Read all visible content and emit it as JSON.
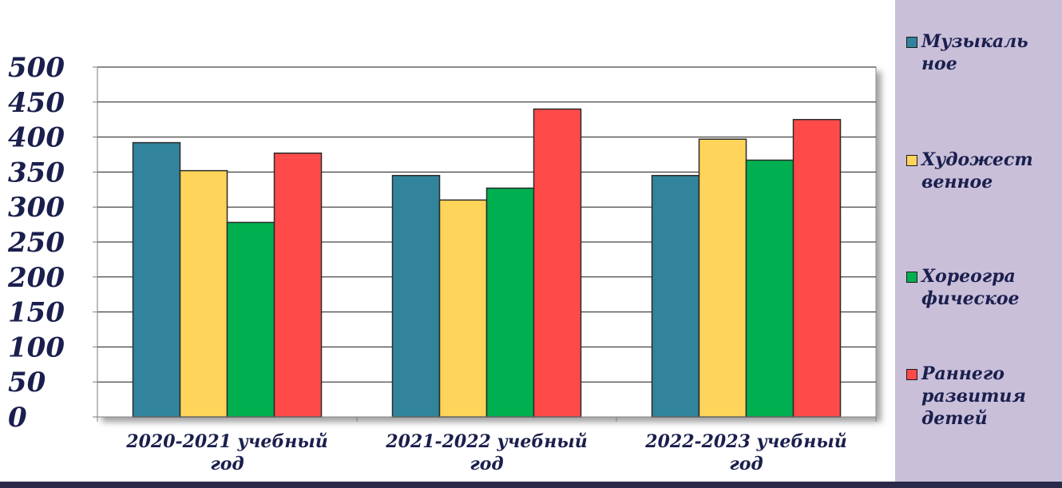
{
  "chart_data": {
    "type": "bar",
    "categories": [
      "2020-2021 учебный год",
      "2021-2022 учебный год",
      "2022-2023 учебный год"
    ],
    "category_lines": [
      [
        "2020-2021 учебный",
        "год"
      ],
      [
        "2021-2022 учебный",
        "год"
      ],
      [
        "2022-2023 учебный",
        "год"
      ]
    ],
    "series": [
      {
        "name": "Музыкальное",
        "legend_lines": [
          "Музыкаль",
          "ное"
        ],
        "color": "#31849b",
        "values": [
          392,
          345,
          345
        ]
      },
      {
        "name": "Художественное",
        "legend_lines": [
          "Художест",
          "венное"
        ],
        "color": "#ffd45a",
        "values": [
          352,
          310,
          397
        ]
      },
      {
        "name": "Хореографическое",
        "legend_lines": [
          "Хореогра",
          "фическое"
        ],
        "color": "#00b050",
        "values": [
          278,
          327,
          367
        ]
      },
      {
        "name": "Раннего развития детей",
        "legend_lines": [
          "Раннего",
          "развития",
          "детей"
        ],
        "color": "#ff4a4a",
        "values": [
          377,
          440,
          425
        ]
      }
    ],
    "y_ticks": [
      "0",
      "50",
      "100",
      "150",
      "200",
      "250",
      "300",
      "350",
      "400",
      "450",
      "500"
    ],
    "ylim": [
      0,
      500
    ],
    "grid": true,
    "legend_position": "right"
  }
}
